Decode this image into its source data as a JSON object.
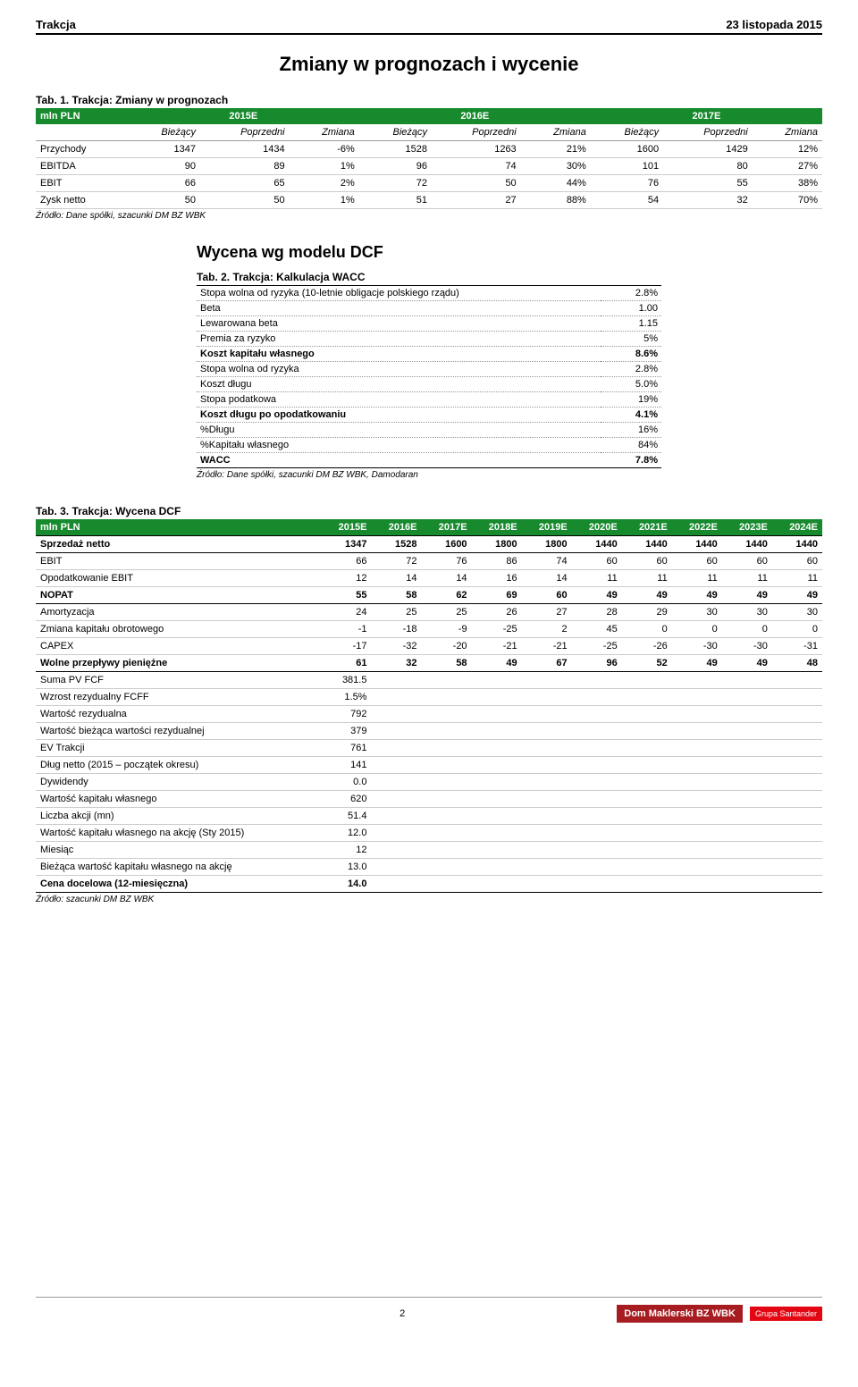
{
  "header": {
    "company": "Trakcja",
    "date": "23 listopada 2015"
  },
  "main_title": "Zmiany w prognozach i wycenie",
  "tab1": {
    "caption": "Tab. 1. Trakcja: Zmiany w prognozach",
    "unit_label": "mln PLN",
    "years": [
      "2015E",
      "2016E",
      "2017E"
    ],
    "sub_headers": [
      "Bieżący",
      "Poprzedni",
      "Zmiana"
    ],
    "rows": [
      {
        "label": "Przychody",
        "c": [
          "1347",
          "1434",
          "-6%",
          "1528",
          "1263",
          "21%",
          "1600",
          "1429",
          "12%"
        ]
      },
      {
        "label": "EBITDA",
        "c": [
          "90",
          "89",
          "1%",
          "96",
          "74",
          "30%",
          "101",
          "80",
          "27%"
        ]
      },
      {
        "label": "EBIT",
        "c": [
          "66",
          "65",
          "2%",
          "72",
          "50",
          "44%",
          "76",
          "55",
          "38%"
        ]
      },
      {
        "label": "Zysk netto",
        "c": [
          "50",
          "50",
          "1%",
          "51",
          "27",
          "88%",
          "54",
          "32",
          "70%"
        ]
      }
    ],
    "source": "Źródło: Dane spółki, szacunki DM BZ WBK"
  },
  "tab2": {
    "title": "Wycena wg modelu DCF",
    "caption": "Tab. 2. Trakcja: Kalkulacja WACC",
    "rows": [
      {
        "label": "Stopa wolna od ryzyka (10-letnie obligacje polskiego rządu)",
        "val": "2.8%",
        "topline": true
      },
      {
        "label": "Beta",
        "val": "1.00"
      },
      {
        "label": "Lewarowana beta",
        "val": "1.15"
      },
      {
        "label": "Premia za ryzyko",
        "val": "5%"
      },
      {
        "label": "Koszt kapitału własnego",
        "val": "8.6%",
        "bold": true
      },
      {
        "label": "Stopa wolna od ryzyka",
        "val": "2.8%"
      },
      {
        "label": "Koszt długu",
        "val": "5.0%"
      },
      {
        "label": "Stopa podatkowa",
        "val": "19%"
      },
      {
        "label": "Koszt długu po opodatkowaniu",
        "val": "4.1%",
        "bold": true
      },
      {
        "label": "%Długu",
        "val": "16%"
      },
      {
        "label": "%Kapitału własnego",
        "val": "84%"
      },
      {
        "label": "WACC",
        "val": "7.8%",
        "bold": true,
        "last": true
      }
    ],
    "source": "Źródło: Dane spółki, szacunki DM BZ WBK, Damodaran"
  },
  "tab3": {
    "caption": "Tab. 3. Trakcja: Wycena DCF",
    "unit_label": "mln PLN",
    "years": [
      "2015E",
      "2016E",
      "2017E",
      "2018E",
      "2019E",
      "2020E",
      "2021E",
      "2022E",
      "2023E",
      "2024E"
    ],
    "rows": [
      {
        "label": "Sprzedaż netto",
        "c": [
          "1347",
          "1528",
          "1600",
          "1800",
          "1800",
          "1440",
          "1440",
          "1440",
          "1440",
          "1440"
        ],
        "bold": true
      },
      {
        "label": "EBIT",
        "c": [
          "66",
          "72",
          "76",
          "86",
          "74",
          "60",
          "60",
          "60",
          "60",
          "60"
        ]
      },
      {
        "label": "Opodatkowanie EBIT",
        "c": [
          "12",
          "14",
          "14",
          "16",
          "14",
          "11",
          "11",
          "11",
          "11",
          "11"
        ]
      },
      {
        "label": "NOPAT",
        "c": [
          "55",
          "58",
          "62",
          "69",
          "60",
          "49",
          "49",
          "49",
          "49",
          "49"
        ],
        "bold": true
      },
      {
        "label": "Amortyzacja",
        "c": [
          "24",
          "25",
          "25",
          "26",
          "27",
          "28",
          "29",
          "30",
          "30",
          "30"
        ]
      },
      {
        "label": "Zmiana kapitału obrotowego",
        "c": [
          "-1",
          "-18",
          "-9",
          "-25",
          "2",
          "45",
          "0",
          "0",
          "0",
          "0"
        ]
      },
      {
        "label": "CAPEX",
        "c": [
          "-17",
          "-32",
          "-20",
          "-21",
          "-21",
          "-25",
          "-26",
          "-30",
          "-30",
          "-31"
        ]
      },
      {
        "label": "Wolne przepływy pieniężne",
        "c": [
          "61",
          "32",
          "58",
          "49",
          "67",
          "96",
          "52",
          "49",
          "49",
          "48"
        ],
        "bold": true
      }
    ],
    "lower_rows": [
      {
        "label": "Suma PV FCF",
        "val": "381.5"
      },
      {
        "label": "Wzrost rezydualny FCFF",
        "val": "1.5%"
      },
      {
        "label": "Wartość rezydualna",
        "val": "792"
      },
      {
        "label": "Wartość bieżąca wartości rezydualnej",
        "val": "379"
      },
      {
        "label": "EV Trakcji",
        "val": "761"
      },
      {
        "label": "Dług netto (2015 – początek okresu)",
        "val": "141"
      },
      {
        "label": "Dywidendy",
        "val": "0.0"
      },
      {
        "label": "Wartość kapitału własnego",
        "val": "620"
      },
      {
        "label": "Liczba akcji (mn)",
        "val": "51.4"
      },
      {
        "label": "Wartość kapitału własnego na akcję (Sty 2015)",
        "val": "12.0"
      },
      {
        "label": "Miesiąc",
        "val": "12"
      },
      {
        "label": "Bieżąca wartość kapitału własnego na akcję",
        "val": "13.0"
      },
      {
        "label": "Cena docelowa (12-miesięczna)",
        "val": "14.0",
        "bold": true
      }
    ],
    "source": "Źródło: szacunki DM BZ WBK"
  },
  "footer": {
    "page": "2",
    "logo1": "Dom Maklerski BZ WBK",
    "logo2": "Grupa Santander"
  }
}
